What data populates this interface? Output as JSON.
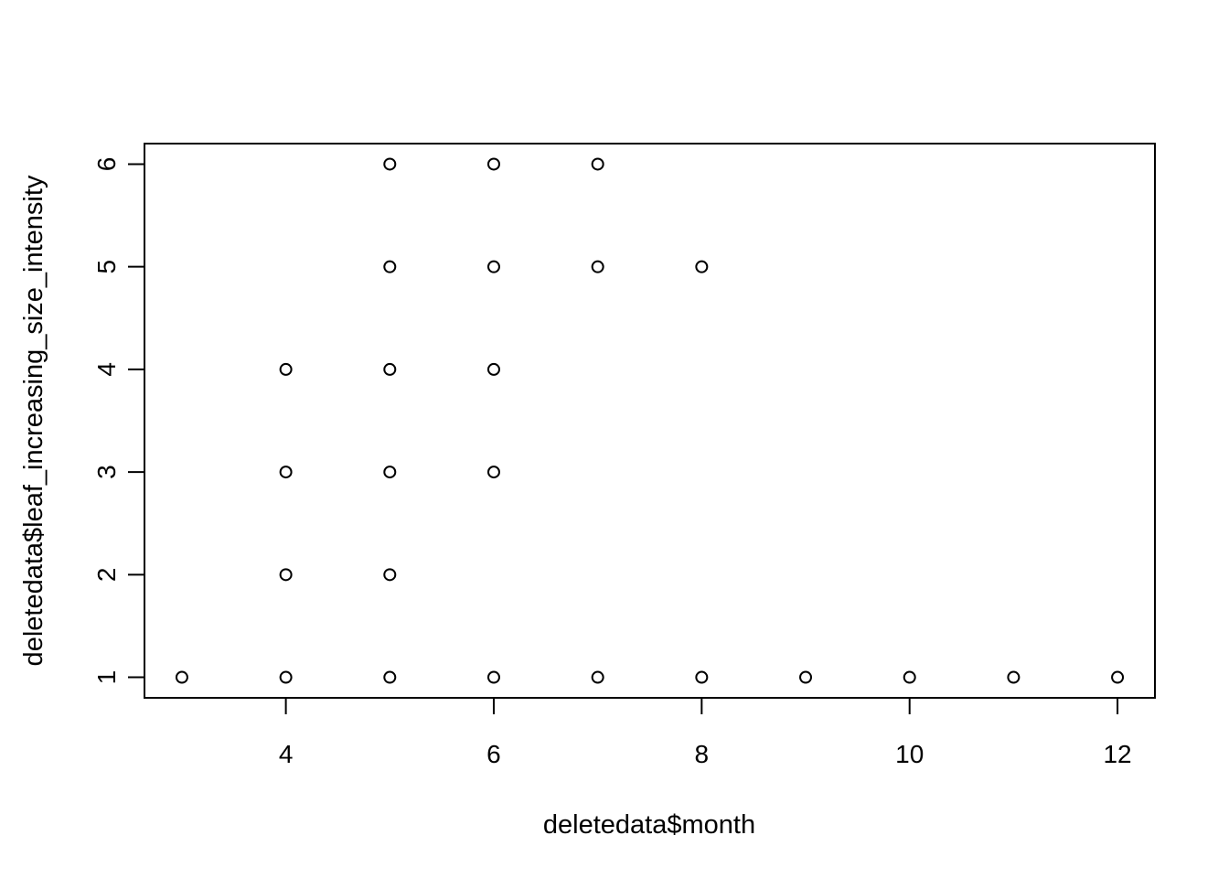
{
  "chart_data": {
    "type": "scatter",
    "title": "",
    "xlabel": "deletedata$month",
    "ylabel": "deletedata$leaf_increasing_size_intensity",
    "xlim": [
      2.64,
      12.36
    ],
    "ylim": [
      0.8,
      6.2
    ],
    "xticks": [
      4,
      6,
      8,
      10,
      12
    ],
    "yticks": [
      1,
      2,
      3,
      4,
      5,
      6
    ],
    "marker": "open-circle",
    "grid": false,
    "series": [
      {
        "points": [
          {
            "x": 3,
            "y": 1
          },
          {
            "x": 4,
            "y": 1
          },
          {
            "x": 4,
            "y": 2
          },
          {
            "x": 4,
            "y": 3
          },
          {
            "x": 4,
            "y": 4
          },
          {
            "x": 5,
            "y": 1
          },
          {
            "x": 5,
            "y": 2
          },
          {
            "x": 5,
            "y": 3
          },
          {
            "x": 5,
            "y": 4
          },
          {
            "x": 5,
            "y": 5
          },
          {
            "x": 5,
            "y": 6
          },
          {
            "x": 6,
            "y": 1
          },
          {
            "x": 6,
            "y": 3
          },
          {
            "x": 6,
            "y": 4
          },
          {
            "x": 6,
            "y": 5
          },
          {
            "x": 6,
            "y": 6
          },
          {
            "x": 7,
            "y": 1
          },
          {
            "x": 7,
            "y": 5
          },
          {
            "x": 7,
            "y": 6
          },
          {
            "x": 8,
            "y": 1
          },
          {
            "x": 8,
            "y": 5
          },
          {
            "x": 9,
            "y": 1
          },
          {
            "x": 10,
            "y": 1
          },
          {
            "x": 11,
            "y": 1
          },
          {
            "x": 12,
            "y": 1
          }
        ]
      }
    ]
  },
  "colors": {
    "foreground": "#000000",
    "background": "#ffffff"
  }
}
